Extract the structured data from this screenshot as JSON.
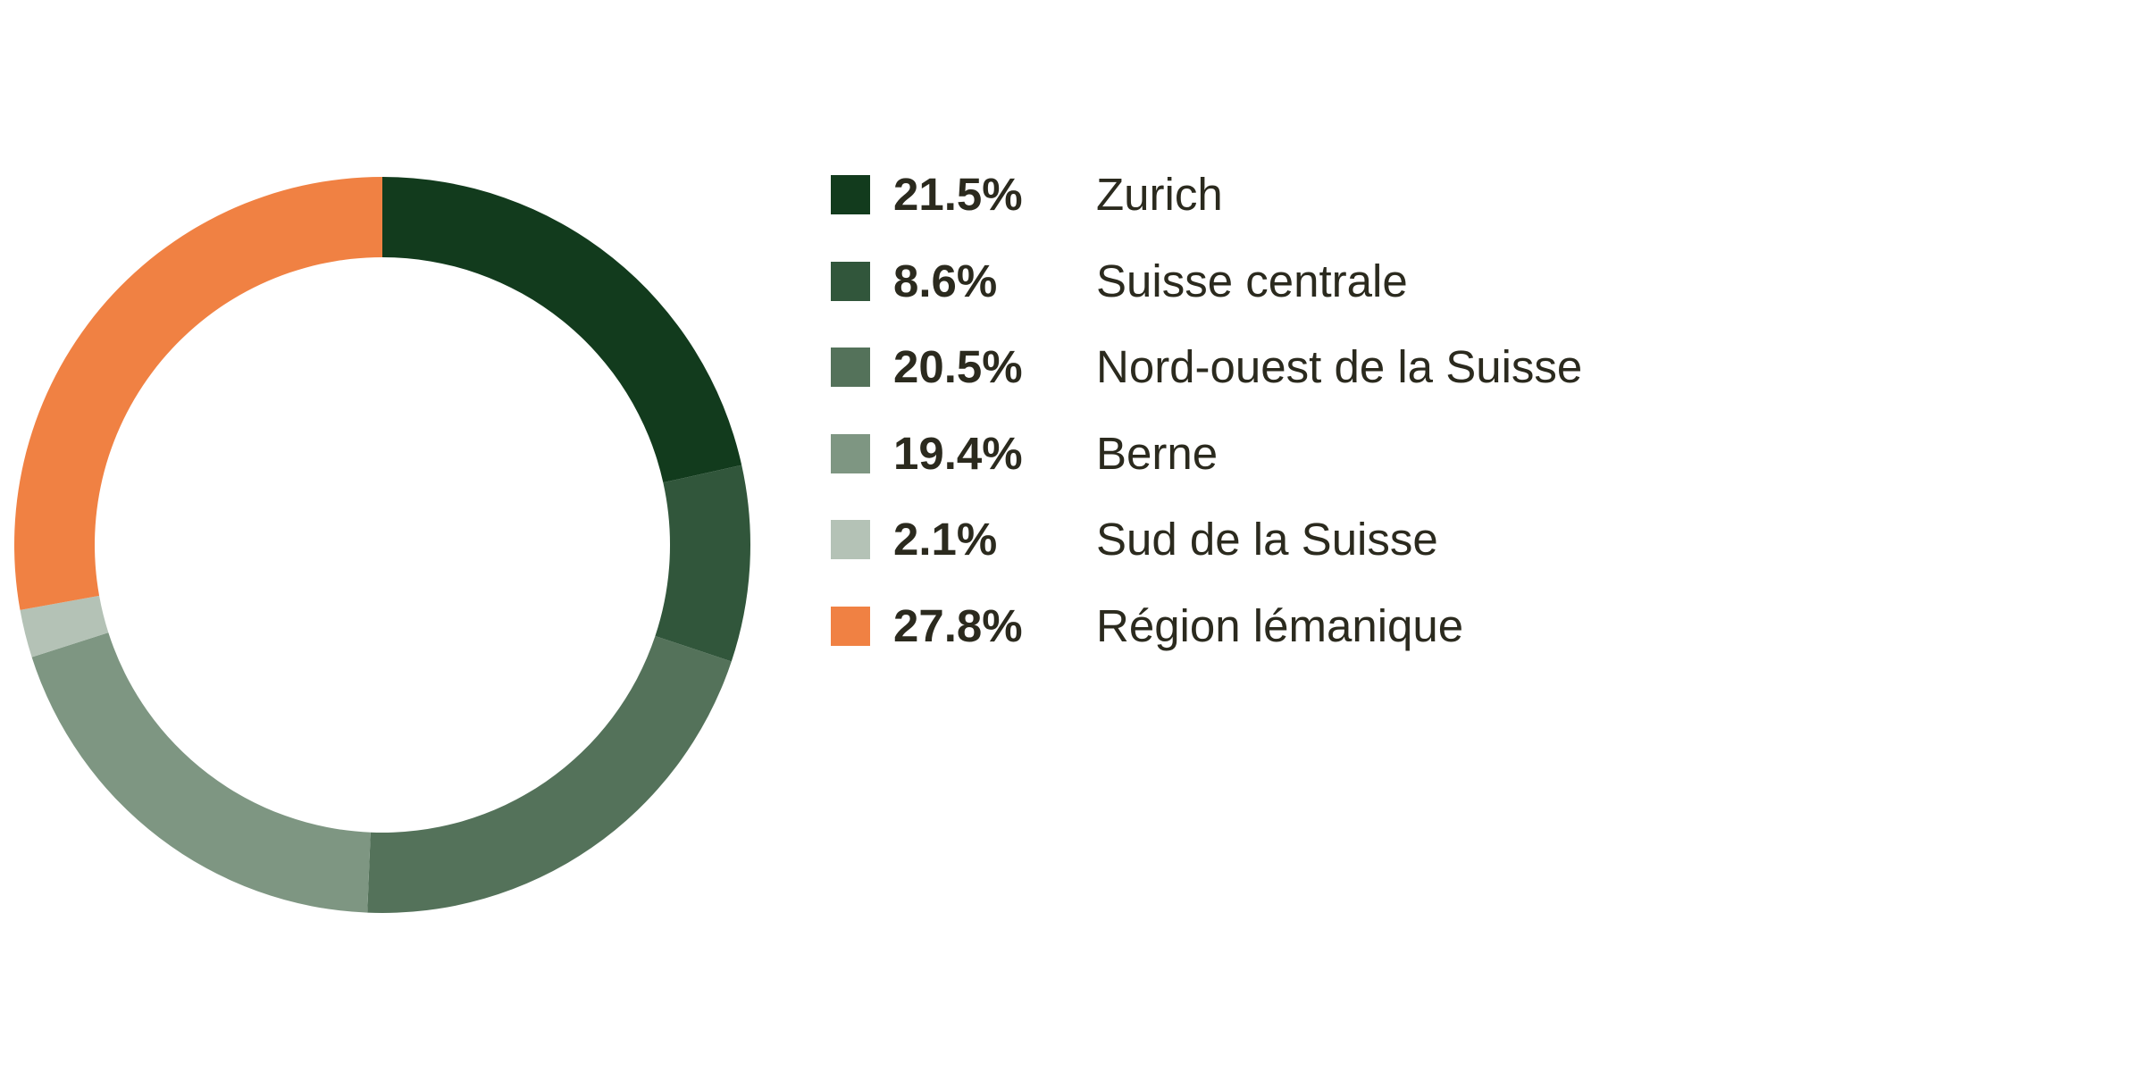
{
  "chart_data": {
    "type": "pie",
    "donut": true,
    "categories": [
      "Zurich",
      "Suisse centrale",
      "Nord-ouest de la Suisse",
      "Berne",
      "Sud de la Suisse",
      "Région lémanique"
    ],
    "values": [
      21.5,
      8.6,
      20.5,
      19.4,
      2.1,
      27.8
    ],
    "value_labels": [
      "21.5%",
      "8.6%",
      "20.5%",
      "19.4%",
      "2.1%",
      "27.8%"
    ],
    "colors": [
      "#123b1d",
      "#31563b",
      "#54725a",
      "#7e9682",
      "#b4c2b6",
      "#f08143"
    ],
    "legend_position": "right"
  }
}
